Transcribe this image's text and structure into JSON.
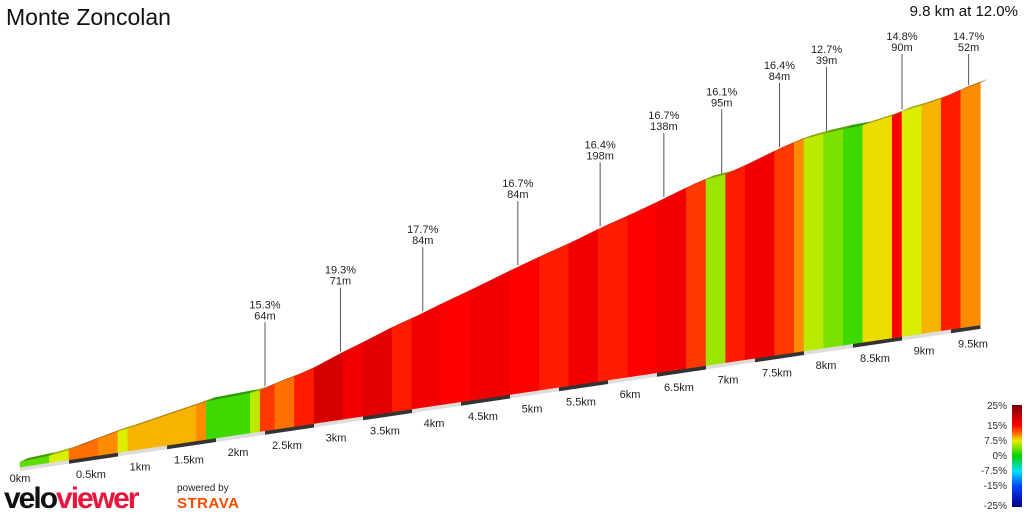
{
  "title": "Monte Zoncolan",
  "summary": "9.8 km at 12.0%",
  "chart_data": {
    "type": "area",
    "xlabel": "",
    "ylabel": "",
    "x_unit": "km",
    "xlim": [
      0,
      9.8
    ],
    "x_ticks": [
      "0km",
      "0.5km",
      "1km",
      "1.5km",
      "2km",
      "2.5km",
      "3km",
      "3.5km",
      "4km",
      "4.5km",
      "5km",
      "5.5km",
      "6km",
      "6.5km",
      "7km",
      "7.5km",
      "8km",
      "8.5km",
      "9km",
      "9.5km"
    ],
    "segments_gradient_pct": [
      [
        0.3,
        3
      ],
      [
        0.5,
        7
      ],
      [
        0.8,
        11
      ],
      [
        1.0,
        10
      ],
      [
        1.1,
        7
      ],
      [
        1.8,
        9
      ],
      [
        1.9,
        10
      ],
      [
        2.35,
        2
      ],
      [
        2.45,
        6
      ],
      [
        2.6,
        13
      ],
      [
        2.8,
        11
      ],
      [
        3.0,
        14
      ],
      [
        3.3,
        18
      ],
      [
        3.5,
        16
      ],
      [
        3.8,
        17
      ],
      [
        4.0,
        14
      ],
      [
        4.3,
        16
      ],
      [
        4.6,
        15
      ],
      [
        5.0,
        16
      ],
      [
        5.3,
        15
      ],
      [
        5.6,
        14
      ],
      [
        5.9,
        16
      ],
      [
        6.2,
        14
      ],
      [
        6.5,
        15
      ],
      [
        6.8,
        16
      ],
      [
        7.0,
        13
      ],
      [
        7.2,
        5
      ],
      [
        7.4,
        14
      ],
      [
        7.7,
        16
      ],
      [
        7.9,
        13
      ],
      [
        8.0,
        10
      ],
      [
        8.2,
        6
      ],
      [
        8.4,
        4
      ],
      [
        8.6,
        2
      ],
      [
        8.9,
        8
      ],
      [
        9.0,
        15
      ],
      [
        9.2,
        7
      ],
      [
        9.4,
        9
      ],
      [
        9.6,
        14
      ],
      [
        9.8,
        10
      ]
    ],
    "annotations": [
      {
        "km": 2.5,
        "grade": "15.3%",
        "length": "64m"
      },
      {
        "km": 3.27,
        "grade": "19.3%",
        "length": "71m"
      },
      {
        "km": 4.11,
        "grade": "17.7%",
        "length": "84m"
      },
      {
        "km": 5.08,
        "grade": "16.7%",
        "length": "84m"
      },
      {
        "km": 5.92,
        "grade": "16.4%",
        "length": "198m"
      },
      {
        "km": 6.57,
        "grade": "16.7%",
        "length": "138m"
      },
      {
        "km": 7.16,
        "grade": "16.1%",
        "length": "95m"
      },
      {
        "km": 7.75,
        "grade": "16.4%",
        "length": "84m"
      },
      {
        "km": 8.23,
        "grade": "12.7%",
        "length": "39m"
      },
      {
        "km": 9.0,
        "grade": "14.8%",
        "length": "90m"
      },
      {
        "km": 9.68,
        "grade": "14.7%",
        "length": "52m"
      }
    ],
    "legend": {
      "labels": [
        "25%",
        "15%",
        "7.5%",
        "0%",
        "-7.5%",
        "-15%",
        "-25%"
      ],
      "stops": [
        [
          25,
          "#7a0000"
        ],
        [
          15,
          "#ff0000"
        ],
        [
          10,
          "#ff8c00"
        ],
        [
          7.5,
          "#e8f000"
        ],
        [
          0,
          "#00d000"
        ],
        [
          -7.5,
          "#00e0ff"
        ],
        [
          -15,
          "#0040ff"
        ],
        [
          -25,
          "#000080"
        ]
      ]
    }
  },
  "branding": {
    "velo": "velo",
    "viewer": "viewer",
    "powered_by": "powered by",
    "strava": "STRAVA"
  }
}
